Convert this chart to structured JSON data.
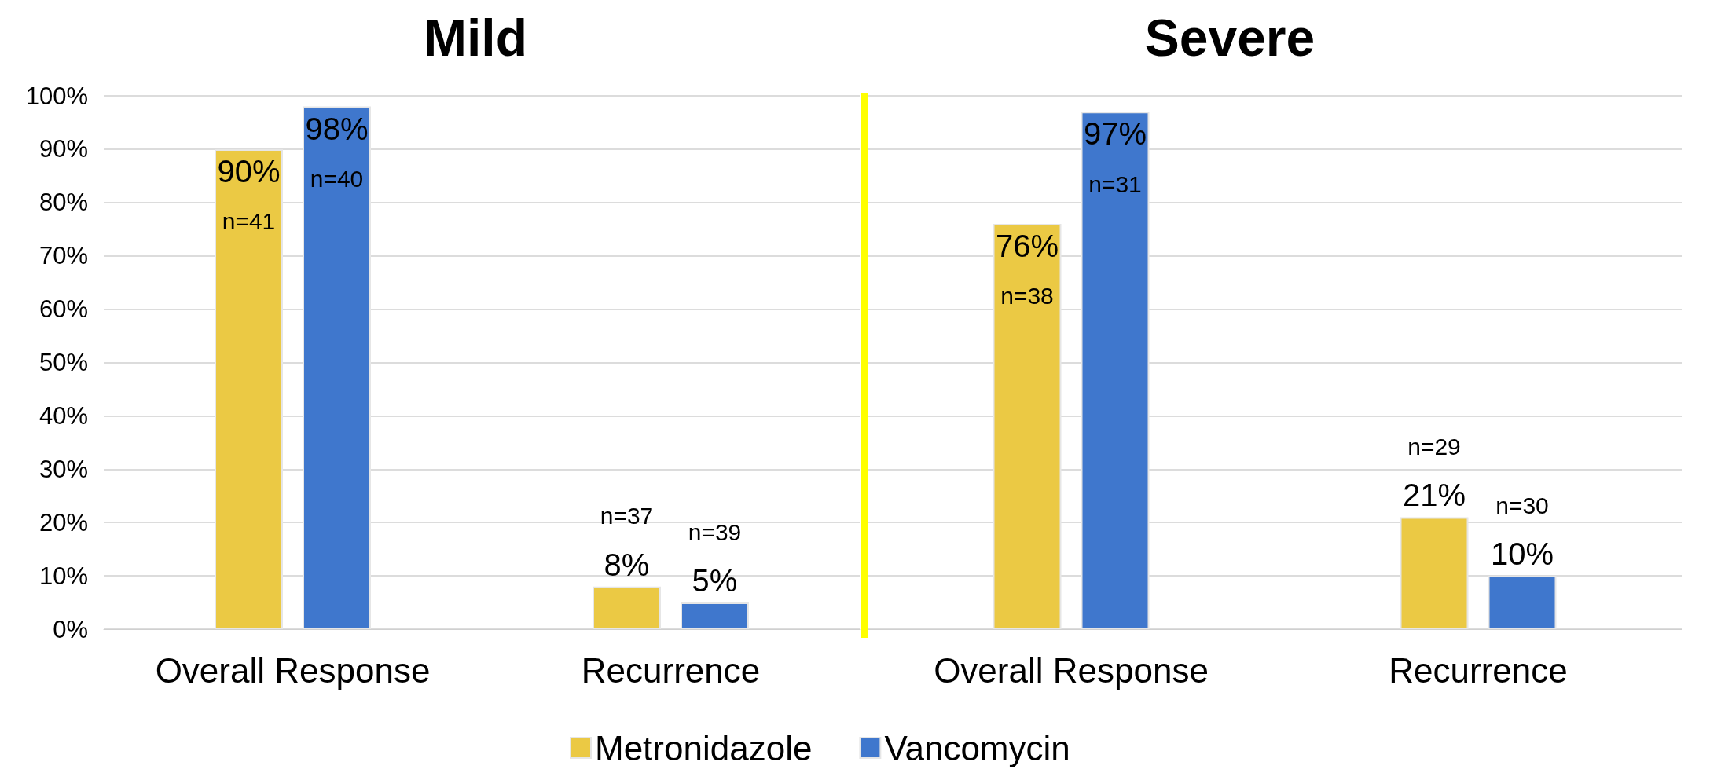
{
  "chart_data": [
    {
      "type": "bar",
      "title": "Mild",
      "categories": [
        "Overall Response",
        "Recurrence"
      ],
      "series": [
        {
          "name": "Metronidazole",
          "color": "#ebc944",
          "values": [
            90,
            8
          ],
          "value_labels": [
            "90%",
            "8%"
          ]
        },
        {
          "name": "Vancomycin",
          "color": "#3f77cd",
          "values": [
            98,
            5
          ],
          "value_labels": [
            "98%",
            "5%"
          ]
        }
      ],
      "ylim": [
        0,
        100
      ],
      "yticks": [
        {
          "value": 0,
          "label": "0%"
        },
        {
          "value": 10,
          "label": "10%"
        },
        {
          "value": 20,
          "label": "20%"
        },
        {
          "value": 30,
          "label": "30%"
        },
        {
          "value": 40,
          "label": "40%"
        },
        {
          "value": 50,
          "label": "50%"
        },
        {
          "value": 60,
          "label": "60%"
        },
        {
          "value": 70,
          "label": "70%"
        },
        {
          "value": 80,
          "label": "80%"
        },
        {
          "value": 90,
          "label": "90%"
        },
        {
          "value": 100,
          "label": "100%"
        }
      ],
      "grid": "y",
      "legend": "bottom",
      "annotations": [
        "n=41",
        "n=37",
        "n=40",
        "n=39"
      ]
    },
    {
      "type": "bar",
      "title": "Severe",
      "categories": [
        "Overall Response",
        "Recurrence"
      ],
      "series": [
        {
          "color": "#ebc944",
          "values": [
            76,
            21
          ],
          "value_labels": [
            "76%",
            "21%"
          ]
        },
        {
          "color": "#3f77cd",
          "values": [
            97,
            10
          ],
          "value_labels": [
            "97%",
            "10%"
          ]
        }
      ],
      "ylim": [
        0,
        100
      ],
      "yticks": [
        0,
        10,
        20,
        30,
        40,
        50,
        60,
        70,
        80,
        90,
        100
      ],
      "grid": "y",
      "tick_labels": "x",
      "annotations": [
        "n=38",
        "n=29",
        "n=31",
        "n=30"
      ]
    }
  ]
}
